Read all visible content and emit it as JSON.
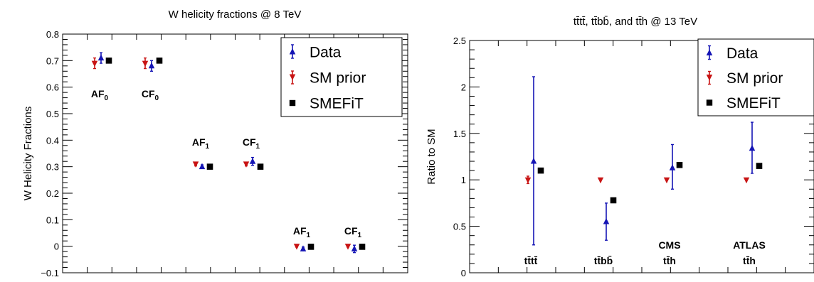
{
  "chart_data": [
    {
      "type": "scatter",
      "title": "W helicity fractions @ 8 TeV",
      "xlabel": "",
      "ylabel": "W Helicity Fractions",
      "ylim": [
        -0.1,
        0.8
      ],
      "yticks": [
        "−0.1",
        "0",
        "0.1",
        "0.2",
        "0.3",
        "0.4",
        "0.5",
        "0.6",
        "0.7",
        "0.8"
      ],
      "ytick_values": [
        -0.1,
        0,
        0.1,
        0.2,
        0.3,
        0.4,
        0.5,
        0.6,
        0.7,
        0.8
      ],
      "legend_position": "top-right",
      "legend": [
        {
          "label": "Data",
          "marker": "triangle-up",
          "color": "#1515b5"
        },
        {
          "label": "SM prior",
          "marker": "triangle-down",
          "color": "#c81414"
        },
        {
          "label": "SMEFiT",
          "marker": "square",
          "color": "#000000"
        }
      ],
      "categories": [
        {
          "label": "AF",
          "sub": "0"
        },
        {
          "label": "CF",
          "sub": "0"
        },
        {
          "label": "AF",
          "sub": "1"
        },
        {
          "label": "CF",
          "sub": "1"
        },
        {
          "label": "AF",
          "sub": "1"
        },
        {
          "label": "CF",
          "sub": "1"
        }
      ],
      "series": [
        {
          "name": "Data",
          "values": [
            0.71,
            0.68,
            0.3,
            0.32,
            -0.01,
            -0.01
          ],
          "errors": [
            0.02,
            0.02,
            0.007,
            0.015,
            0.007,
            0.014
          ]
        },
        {
          "name": "SM prior",
          "values": [
            0.69,
            0.69,
            0.31,
            0.31,
            0.0,
            0.0
          ],
          "errors": [
            0.02,
            0.02,
            0.007,
            0.007,
            0.003,
            0.003
          ]
        },
        {
          "name": "SMEFiT",
          "values": [
            0.7,
            0.7,
            0.3,
            0.3,
            -0.002,
            -0.002
          ],
          "errors": [
            0,
            0,
            0,
            0,
            0,
            0
          ]
        }
      ]
    },
    {
      "type": "scatter",
      "title": "t̅t t̅t, t̅t b̅b, and t̅t h @ 13 TeV",
      "title_text": "tt̄tt̄, tt̄bb̄, and tt̄h @ 13 TeV",
      "xlabel": "",
      "ylabel": "Ratio to SM",
      "ylim": [
        0,
        2.5
      ],
      "yticks": [
        "0",
        "0.5",
        "1",
        "1.5",
        "2",
        "2.5"
      ],
      "ytick_values": [
        0,
        0.5,
        1,
        1.5,
        2,
        2.5
      ],
      "legend_position": "top-right",
      "legend": [
        {
          "label": "Data",
          "marker": "triangle-up",
          "color": "#1515b5"
        },
        {
          "label": "SM prior",
          "marker": "triangle-down",
          "color": "#c81414"
        },
        {
          "label": "SMEFiT",
          "marker": "square",
          "color": "#000000"
        }
      ],
      "categories": [
        {
          "top": "",
          "bottom": "tt̄tt̄"
        },
        {
          "top": "",
          "bottom": "tt̄bb̄"
        },
        {
          "top": "CMS",
          "bottom": "tt̄h"
        },
        {
          "top": "ATLAS",
          "bottom": "tt̄h"
        }
      ],
      "series": [
        {
          "name": "Data",
          "values": [
            1.2,
            0.55,
            1.13,
            1.34
          ],
          "err_low": [
            0.9,
            0.2,
            0.23,
            0.27
          ],
          "err_high": [
            0.91,
            0.2,
            0.25,
            0.28
          ]
        },
        {
          "name": "SM prior",
          "values": [
            1.0,
            1.0,
            1.0,
            1.0
          ],
          "err_low": [
            0.04,
            0,
            0,
            0
          ],
          "err_high": [
            0.04,
            0,
            0,
            0
          ]
        },
        {
          "name": "SMEFiT",
          "values": [
            1.1,
            0.78,
            1.16,
            1.15
          ],
          "err_low": [
            0,
            0,
            0,
            0
          ],
          "err_high": [
            0,
            0,
            0,
            0
          ]
        }
      ]
    }
  ]
}
